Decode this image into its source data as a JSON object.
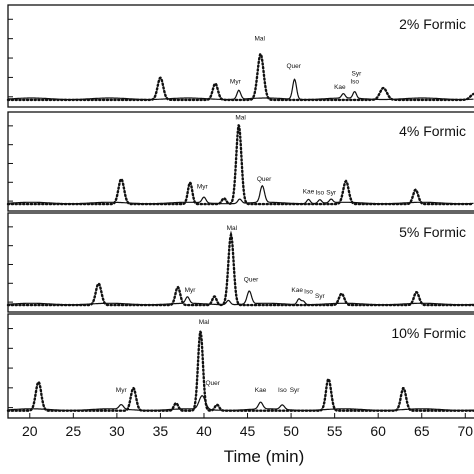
{
  "chart_data": {
    "type": "line",
    "xlabel": "Time (min)",
    "xlim": [
      17.5,
      71
    ],
    "x_ticks": [
      20,
      25,
      30,
      35,
      40,
      45,
      50,
      55,
      60,
      65,
      70
    ],
    "y_ticks": 5,
    "panels": [
      {
        "label": "2% Formic",
        "peaks_dotted": [
          {
            "x": 35.0,
            "h": 0.3,
            "w": 0.32
          },
          {
            "x": 41.3,
            "h": 0.22,
            "w": 0.3
          },
          {
            "x": 46.5,
            "h": 0.62,
            "w": 0.35
          },
          {
            "x": 60.6,
            "h": 0.16,
            "w": 0.4
          },
          {
            "x": 71.0,
            "h": 0.08,
            "w": 0.4
          }
        ],
        "peaks_solid": [
          {
            "x": 44.0,
            "h": 0.12,
            "w": 0.22
          },
          {
            "x": 50.4,
            "h": 0.27,
            "w": 0.22
          },
          {
            "x": 56.0,
            "h": 0.06,
            "w": 0.2
          },
          {
            "x": 57.3,
            "h": 0.09,
            "w": 0.2
          }
        ],
        "labels": [
          {
            "text": "Mal",
            "x": 46.4,
            "h": 0.8
          },
          {
            "text": "Myr",
            "x": 43.6,
            "h": 0.22
          },
          {
            "text": "Quer",
            "x": 50.3,
            "h": 0.43
          },
          {
            "text": "Kae",
            "x": 55.6,
            "h": 0.15
          },
          {
            "text": "Syr",
            "x": 57.5,
            "h": 0.33
          },
          {
            "text": "Iso",
            "x": 57.3,
            "h": 0.22
          }
        ]
      },
      {
        "label": "4% Formic",
        "peaks_dotted": [
          {
            "x": 30.5,
            "h": 0.35,
            "w": 0.32
          },
          {
            "x": 38.4,
            "h": 0.3,
            "w": 0.25
          },
          {
            "x": 42.3,
            "h": 0.08,
            "w": 0.25
          },
          {
            "x": 44.0,
            "h": 1.1,
            "w": 0.3
          },
          {
            "x": 56.3,
            "h": 0.32,
            "w": 0.32
          },
          {
            "x": 64.3,
            "h": 0.2,
            "w": 0.3
          }
        ],
        "peaks_solid": [
          {
            "x": 40.0,
            "h": 0.08,
            "w": 0.22
          },
          {
            "x": 44.1,
            "h": 0.06,
            "w": 0.22
          },
          {
            "x": 46.7,
            "h": 0.23,
            "w": 0.25
          },
          {
            "x": 52.0,
            "h": 0.06,
            "w": 0.2
          },
          {
            "x": 53.3,
            "h": 0.05,
            "w": 0.2
          },
          {
            "x": 54.6,
            "h": 0.05,
            "w": 0.2
          }
        ],
        "labels": [
          {
            "text": "Mal",
            "x": 44.2,
            "h": 1.18
          },
          {
            "text": "Myr",
            "x": 39.8,
            "h": 0.22
          },
          {
            "text": "Quer",
            "x": 46.9,
            "h": 0.32
          },
          {
            "text": "Kae",
            "x": 52.0,
            "h": 0.15
          },
          {
            "text": "Iso",
            "x": 53.3,
            "h": 0.13
          },
          {
            "text": "Syr",
            "x": 54.6,
            "h": 0.13
          }
        ]
      },
      {
        "label": "5% Formic",
        "peaks_dotted": [
          {
            "x": 27.9,
            "h": 0.3,
            "w": 0.32
          },
          {
            "x": 37.0,
            "h": 0.25,
            "w": 0.28
          },
          {
            "x": 41.2,
            "h": 0.12,
            "w": 0.25
          },
          {
            "x": 43.1,
            "h": 0.98,
            "w": 0.3
          },
          {
            "x": 55.8,
            "h": 0.16,
            "w": 0.3
          },
          {
            "x": 64.4,
            "h": 0.18,
            "w": 0.3
          }
        ],
        "peaks_solid": [
          {
            "x": 38.1,
            "h": 0.09,
            "w": 0.22
          },
          {
            "x": 42.8,
            "h": 0.06,
            "w": 0.22
          },
          {
            "x": 45.2,
            "h": 0.18,
            "w": 0.25
          },
          {
            "x": 50.9,
            "h": 0.08,
            "w": 0.2
          },
          {
            "x": 51.4,
            "h": 0.05,
            "w": 0.2
          }
        ],
        "labels": [
          {
            "text": "Mal",
            "x": 43.2,
            "h": 1.05
          },
          {
            "text": "Myr",
            "x": 38.4,
            "h": 0.18
          },
          {
            "text": "Quer",
            "x": 45.4,
            "h": 0.33
          },
          {
            "text": "Kae",
            "x": 50.7,
            "h": 0.18
          },
          {
            "text": "Iso",
            "x": 52.0,
            "h": 0.16
          },
          {
            "text": "Syr",
            "x": 53.3,
            "h": 0.1
          }
        ]
      },
      {
        "label": "10% Formic",
        "peaks_dotted": [
          {
            "x": 21.0,
            "h": 0.38,
            "w": 0.32
          },
          {
            "x": 31.9,
            "h": 0.3,
            "w": 0.3
          },
          {
            "x": 36.8,
            "h": 0.1,
            "w": 0.25
          },
          {
            "x": 39.6,
            "h": 1.05,
            "w": 0.28
          },
          {
            "x": 41.5,
            "h": 0.08,
            "w": 0.25
          },
          {
            "x": 54.3,
            "h": 0.42,
            "w": 0.3
          },
          {
            "x": 62.9,
            "h": 0.3,
            "w": 0.3
          }
        ],
        "peaks_solid": [
          {
            "x": 30.5,
            "h": 0.06,
            "w": 0.25
          },
          {
            "x": 39.8,
            "h": 0.18,
            "w": 0.35
          },
          {
            "x": 46.5,
            "h": 0.09,
            "w": 0.25
          },
          {
            "x": 49.0,
            "h": 0.06,
            "w": 0.25
          }
        ],
        "labels": [
          {
            "text": "Mal",
            "x": 40.0,
            "h": 1.15
          },
          {
            "text": "Myr",
            "x": 30.5,
            "h": 0.25
          },
          {
            "text": "Quer",
            "x": 41.0,
            "h": 0.34
          },
          {
            "text": "Kae",
            "x": 46.5,
            "h": 0.25
          },
          {
            "text": "Iso",
            "x": 49.0,
            "h": 0.25
          },
          {
            "text": "Syr",
            "x": 50.4,
            "h": 0.25
          }
        ]
      }
    ]
  }
}
